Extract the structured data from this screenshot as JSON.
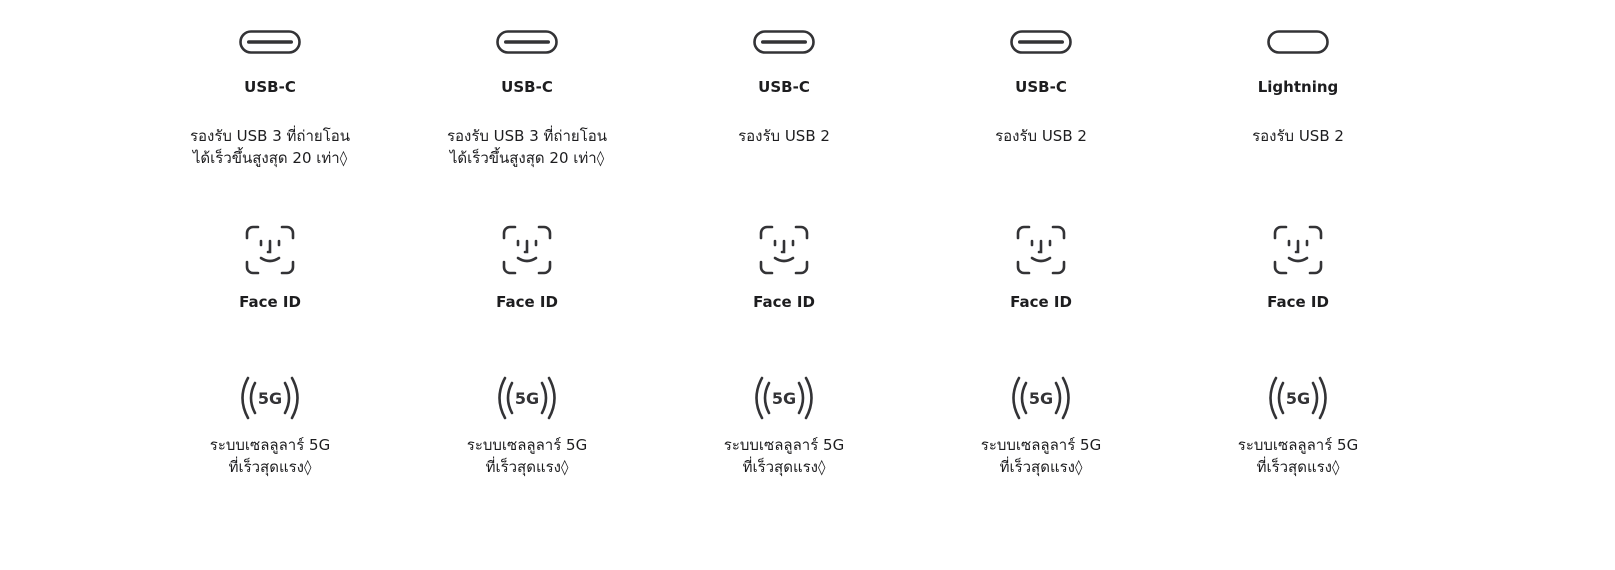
{
  "columns": [
    {
      "port_icon": "usb-c-port-icon",
      "port_name": "USB-C",
      "port_desc_line1": "รองรับ USB 3 ที่ถ่ายโอน",
      "port_desc_line2": "ได้เร็วขึ้นสูงสุด 20 เท่า◊",
      "faceid_icon": "face-id-icon",
      "faceid_label": "Face ID",
      "fiveg_icon": "5g-icon",
      "fiveg_icon_text": "5G",
      "fiveg_line1": "ระบบเซลลูลาร์ 5G",
      "fiveg_line2": "ที่เร็วสุดแรง◊"
    },
    {
      "port_icon": "usb-c-port-icon",
      "port_name": "USB-C",
      "port_desc_line1": "รองรับ USB 3 ที่ถ่ายโอน",
      "port_desc_line2": "ได้เร็วขึ้นสูงสุด 20 เท่า◊",
      "faceid_icon": "face-id-icon",
      "faceid_label": "Face ID",
      "fiveg_icon": "5g-icon",
      "fiveg_icon_text": "5G",
      "fiveg_line1": "ระบบเซลลูลาร์ 5G",
      "fiveg_line2": "ที่เร็วสุดแรง◊"
    },
    {
      "port_icon": "usb-c-port-icon",
      "port_name": "USB-C",
      "port_desc_line1": "รองรับ USB 2",
      "port_desc_line2": "",
      "faceid_icon": "face-id-icon",
      "faceid_label": "Face ID",
      "fiveg_icon": "5g-icon",
      "fiveg_icon_text": "5G",
      "fiveg_line1": "ระบบเซลลูลาร์ 5G",
      "fiveg_line2": "ที่เร็วสุดแรง◊"
    },
    {
      "port_icon": "usb-c-port-icon",
      "port_name": "USB-C",
      "port_desc_line1": "รองรับ USB 2",
      "port_desc_line2": "",
      "faceid_icon": "face-id-icon",
      "faceid_label": "Face ID",
      "fiveg_icon": "5g-icon",
      "fiveg_icon_text": "5G",
      "fiveg_line1": "ระบบเซลลูลาร์ 5G",
      "fiveg_line2": "ที่เร็วสุดแรง◊"
    },
    {
      "port_icon": "lightning-port-icon",
      "port_name": "Lightning",
      "port_desc_line1": "รองรับ USB 2",
      "port_desc_line2": "",
      "faceid_icon": "face-id-icon",
      "faceid_label": "Face ID",
      "fiveg_icon": "5g-icon",
      "fiveg_icon_text": "5G",
      "fiveg_line1": "ระบบเซลลูลาร์ 5G",
      "fiveg_line2": "ที่เร็วสุดแรง◊"
    }
  ],
  "colors": {
    "text": "#1d1d1f",
    "icon": "#333336",
    "background": "#ffffff"
  }
}
